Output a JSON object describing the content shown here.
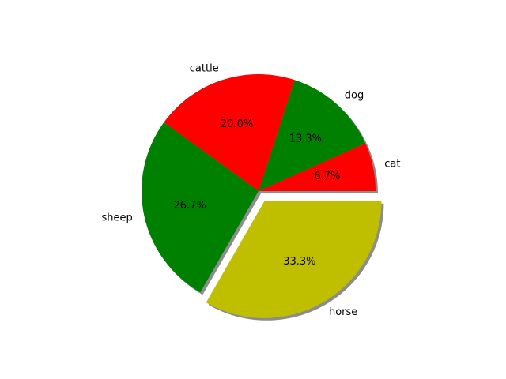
{
  "chart_data": {
    "type": "pie",
    "categories": [
      "cat",
      "dog",
      "cattle",
      "sheep",
      "horse"
    ],
    "values": [
      6.7,
      13.3,
      20.0,
      26.7,
      33.3
    ],
    "percent_labels": [
      "6.7%",
      "13.3%",
      "20.0%",
      "26.7%",
      "33.3%"
    ],
    "colors": [
      "#ff0000",
      "#008000",
      "#ff0000",
      "#008000",
      "#bfbf00"
    ],
    "explode": [
      0,
      0,
      0,
      0,
      0.1
    ],
    "start_angle": 0,
    "direction": "counterclockwise",
    "shadow": true,
    "legend": "none"
  }
}
